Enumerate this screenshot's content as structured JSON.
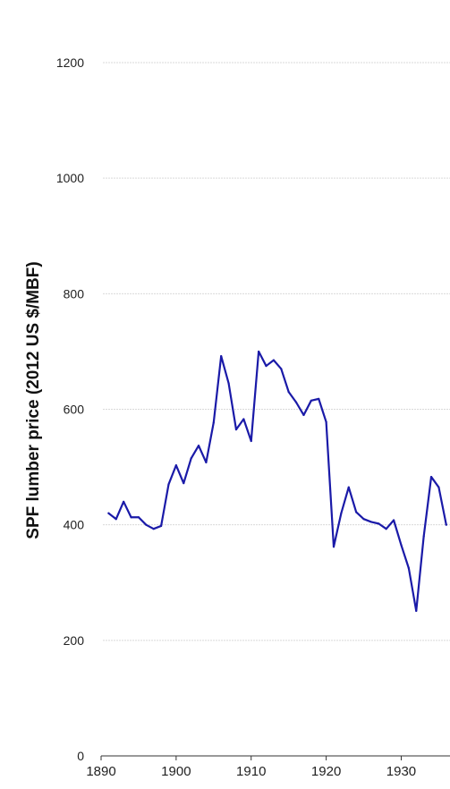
{
  "chart_data": {
    "type": "line",
    "title": "",
    "xlabel": "",
    "ylabel": "SPF lumber price (2012 US $/MBF)",
    "xlim": [
      1890,
      1936.5
    ],
    "ylim": [
      0,
      1200
    ],
    "xticks": [
      1890,
      1900,
      1910,
      1920,
      1930
    ],
    "yticks": [
      0,
      200,
      400,
      600,
      800,
      1000,
      1200
    ],
    "grid": true,
    "legend": "none",
    "line_color": "#1a1aa8",
    "series": [
      {
        "x": [
          1891,
          1892,
          1893,
          1894,
          1895,
          1896,
          1897,
          1898,
          1899,
          1900,
          1901,
          1902,
          1903,
          1904,
          1905,
          1906,
          1907,
          1908,
          1909,
          1910,
          1911,
          1912,
          1913,
          1914,
          1915,
          1916,
          1917,
          1918,
          1919,
          1920,
          1921,
          1922,
          1923,
          1924,
          1925,
          1926,
          1927,
          1928,
          1929,
          1930,
          1931,
          1932,
          1933,
          1934,
          1935,
          1936
        ],
        "y": [
          420,
          410,
          440,
          413,
          413,
          400,
          393,
          398,
          470,
          503,
          472,
          515,
          537,
          508,
          577,
          692,
          645,
          565,
          583,
          545,
          700,
          675,
          685,
          670,
          630,
          612,
          590,
          615,
          618,
          578,
          362,
          420,
          465,
          422,
          410,
          405,
          402,
          393,
          408,
          365,
          325,
          251,
          380,
          483,
          465,
          400
        ]
      }
    ]
  }
}
